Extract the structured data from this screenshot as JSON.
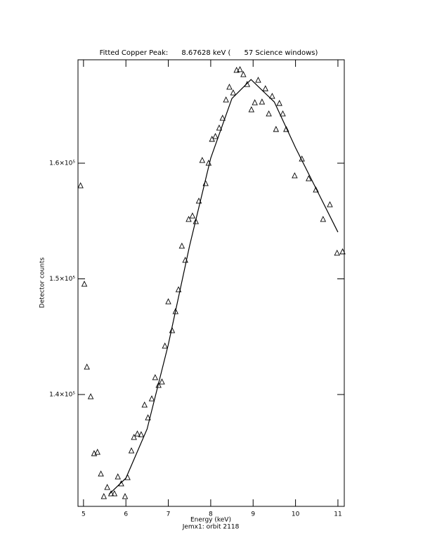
{
  "chart_data": {
    "type": "scatter",
    "title": "Fitted Copper Peak:      8.67628 keV (      57 Science windows)",
    "x_label": "Energy (keV)",
    "subtitle": "Jemx1: orbit 2118",
    "y_label": "Detector counts",
    "xlim": [
      4.87,
      11.15
    ],
    "ylim": [
      130330,
      168940
    ],
    "xticks": [
      5,
      6,
      7,
      8,
      9,
      10,
      11
    ],
    "yticks": [
      {
        "value": 140000,
        "label": "1.4×10⁵"
      },
      {
        "value": 150000,
        "label": "1.5×10⁵"
      },
      {
        "value": 160000,
        "label": "1.6×10⁵"
      }
    ],
    "series": [
      {
        "type": "scatter",
        "marker": "triangle",
        "color": "#000000",
        "x": [
          4.93,
          5.02,
          5.08,
          5.17,
          5.25,
          5.33,
          5.41,
          5.48,
          5.56,
          5.65,
          5.73,
          5.81,
          5.89,
          5.98,
          6.04,
          6.13,
          6.19,
          6.27,
          6.36,
          6.44,
          6.52,
          6.61,
          6.69,
          6.77,
          6.85,
          6.92,
          7.0,
          7.09,
          7.17,
          7.24,
          7.32,
          7.4,
          7.48,
          7.57,
          7.65,
          7.72,
          7.8,
          7.88,
          7.95,
          8.03,
          8.11,
          8.2,
          8.28,
          8.36,
          8.44,
          8.53,
          8.61,
          8.69,
          8.77,
          8.86,
          8.96,
          9.04,
          9.12,
          9.21,
          9.29,
          9.37,
          9.45,
          9.54,
          9.62,
          9.7,
          9.78,
          9.98,
          10.15,
          10.31,
          10.48,
          10.65,
          10.81,
          10.98,
          11.11
        ],
        "values": [
          158050,
          149540,
          142370,
          139810,
          134890,
          135010,
          133130,
          131180,
          131970,
          131420,
          131420,
          132880,
          132280,
          131180,
          132820,
          135130,
          136290,
          136590,
          136530,
          139090,
          137990,
          139630,
          141460,
          140790,
          141090,
          144190,
          148020,
          145530,
          147170,
          149060,
          152830,
          151610,
          155140,
          155440,
          154950,
          156720,
          160240,
          158240,
          160000,
          162070,
          162310,
          163040,
          163890,
          165470,
          166570,
          166080,
          168030,
          168090,
          167660,
          166810,
          164620,
          165230,
          167170,
          165290,
          166440,
          164260,
          165780,
          162920,
          165170,
          164260,
          162920,
          158910,
          160360,
          158660,
          157690,
          155140,
          156410,
          152220,
          152340
        ]
      },
      {
        "type": "line",
        "color": "#000000",
        "x": [
          5.6,
          6.0,
          6.5,
          7.0,
          7.5,
          8.0,
          8.5,
          8.95,
          9.5,
          10.0,
          10.5,
          11.0
        ],
        "values": [
          131370,
          132770,
          137020,
          144320,
          152830,
          160430,
          165590,
          167230,
          165290,
          161340,
          157690,
          154040
        ]
      }
    ]
  }
}
